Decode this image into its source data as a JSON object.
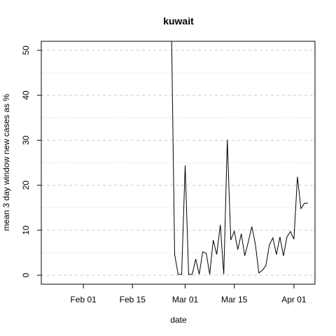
{
  "chart_data": {
    "type": "line",
    "title": "kuwait",
    "xlabel": "date",
    "ylabel": "mean  3  day window new cases as %",
    "x_tick_labels": [
      "Feb 01",
      "Feb 15",
      "Mar 01",
      "Mar 15",
      "Apr 01"
    ],
    "x_ticks": [
      "2020-02-01",
      "2020-02-15",
      "2020-03-01",
      "2020-03-15",
      "2020-04-01"
    ],
    "y_tick_labels": [
      "0",
      "10",
      "20",
      "30",
      "40",
      "50"
    ],
    "y_ticks": [
      0,
      10,
      20,
      30,
      40,
      50
    ],
    "xlim": [
      "2020-01-20",
      "2020-04-07"
    ],
    "ylim": [
      -2,
      52
    ],
    "grid": {
      "major_dashed": true,
      "minor_dotted": true
    },
    "line_color": "#000000",
    "grid_color": "#cccccc",
    "series": [
      {
        "x": [
          "2020-02-26",
          "2020-02-27",
          "2020-02-28",
          "2020-02-29",
          "2020-03-01",
          "2020-03-02",
          "2020-03-03",
          "2020-03-04",
          "2020-03-05",
          "2020-03-06",
          "2020-03-07",
          "2020-03-08",
          "2020-03-09",
          "2020-03-10",
          "2020-03-11",
          "2020-03-12",
          "2020-03-13",
          "2020-03-14",
          "2020-03-15",
          "2020-03-16",
          "2020-03-17",
          "2020-03-18",
          "2020-03-19",
          "2020-03-20",
          "2020-03-21",
          "2020-03-22",
          "2020-03-23",
          "2020-03-24",
          "2020-03-25",
          "2020-03-26",
          "2020-03-27",
          "2020-03-28",
          "2020-03-29",
          "2020-03-30",
          "2020-03-31",
          "2020-04-01",
          "2020-04-02",
          "2020-04-03",
          "2020-04-04",
          "2020-04-05"
        ],
        "y": [
          60,
          4.6,
          0.2,
          0.2,
          24.4,
          0.2,
          0.2,
          3.6,
          0.2,
          5.2,
          4.9,
          0.2,
          7.8,
          4.6,
          11.2,
          0.2,
          30.1,
          7.8,
          9.8,
          5.7,
          9.2,
          4.3,
          7.5,
          10.8,
          6.9,
          0.5,
          1.1,
          2.1,
          6.7,
          8.3,
          4.6,
          8.5,
          4.3,
          8.5,
          9.7,
          8.0,
          21.9,
          14.8,
          16.0,
          16.0
        ]
      }
    ]
  }
}
